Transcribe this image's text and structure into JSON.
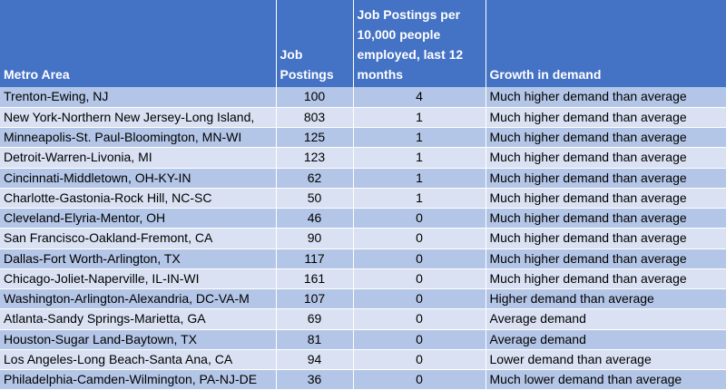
{
  "table": {
    "headers": [
      "Metro Area",
      "Job Postings",
      "Job Postings per 10,000 people employed, last 12 months",
      "Growth in demand"
    ],
    "rows": [
      [
        "Trenton-Ewing, NJ",
        "100",
        "4",
        "Much higher demand than average"
      ],
      [
        "New York-Northern New Jersey-Long Island,",
        "803",
        "1",
        "Much higher demand than average"
      ],
      [
        "Minneapolis-St. Paul-Bloomington, MN-WI",
        "125",
        "1",
        "Much higher demand than average"
      ],
      [
        "Detroit-Warren-Livonia, MI",
        "123",
        "1",
        "Much higher demand than average"
      ],
      [
        "Cincinnati-Middletown, OH-KY-IN",
        "62",
        "1",
        "Much higher demand than average"
      ],
      [
        "Charlotte-Gastonia-Rock Hill, NC-SC",
        "50",
        "1",
        "Much higher demand than average"
      ],
      [
        "Cleveland-Elyria-Mentor, OH",
        "46",
        "0",
        "Much higher demand than average"
      ],
      [
        "San Francisco-Oakland-Fremont, CA",
        "90",
        "0",
        "Much higher demand than average"
      ],
      [
        "Dallas-Fort Worth-Arlington, TX",
        "117",
        "0",
        "Much higher demand than average"
      ],
      [
        "Chicago-Joliet-Naperville, IL-IN-WI",
        "161",
        "0",
        "Much higher demand than average"
      ],
      [
        "Washington-Arlington-Alexandria, DC-VA-M",
        "107",
        "0",
        "Higher demand than average"
      ],
      [
        "Atlanta-Sandy Springs-Marietta, GA",
        "69",
        "0",
        "Average demand"
      ],
      [
        "Houston-Sugar Land-Baytown, TX",
        "81",
        "0",
        "Average demand"
      ],
      [
        "Los Angeles-Long Beach-Santa Ana, CA",
        "94",
        "0",
        "Lower demand than average"
      ],
      [
        "Philadelphia-Camden-Wilmington, PA-NJ-DE",
        "36",
        "0",
        "Much lower demand than average"
      ]
    ],
    "colors": {
      "header_bg": "#4472c4",
      "row_odd_bg": "#b4c6e7",
      "row_even_bg": "#d9e1f2"
    }
  }
}
